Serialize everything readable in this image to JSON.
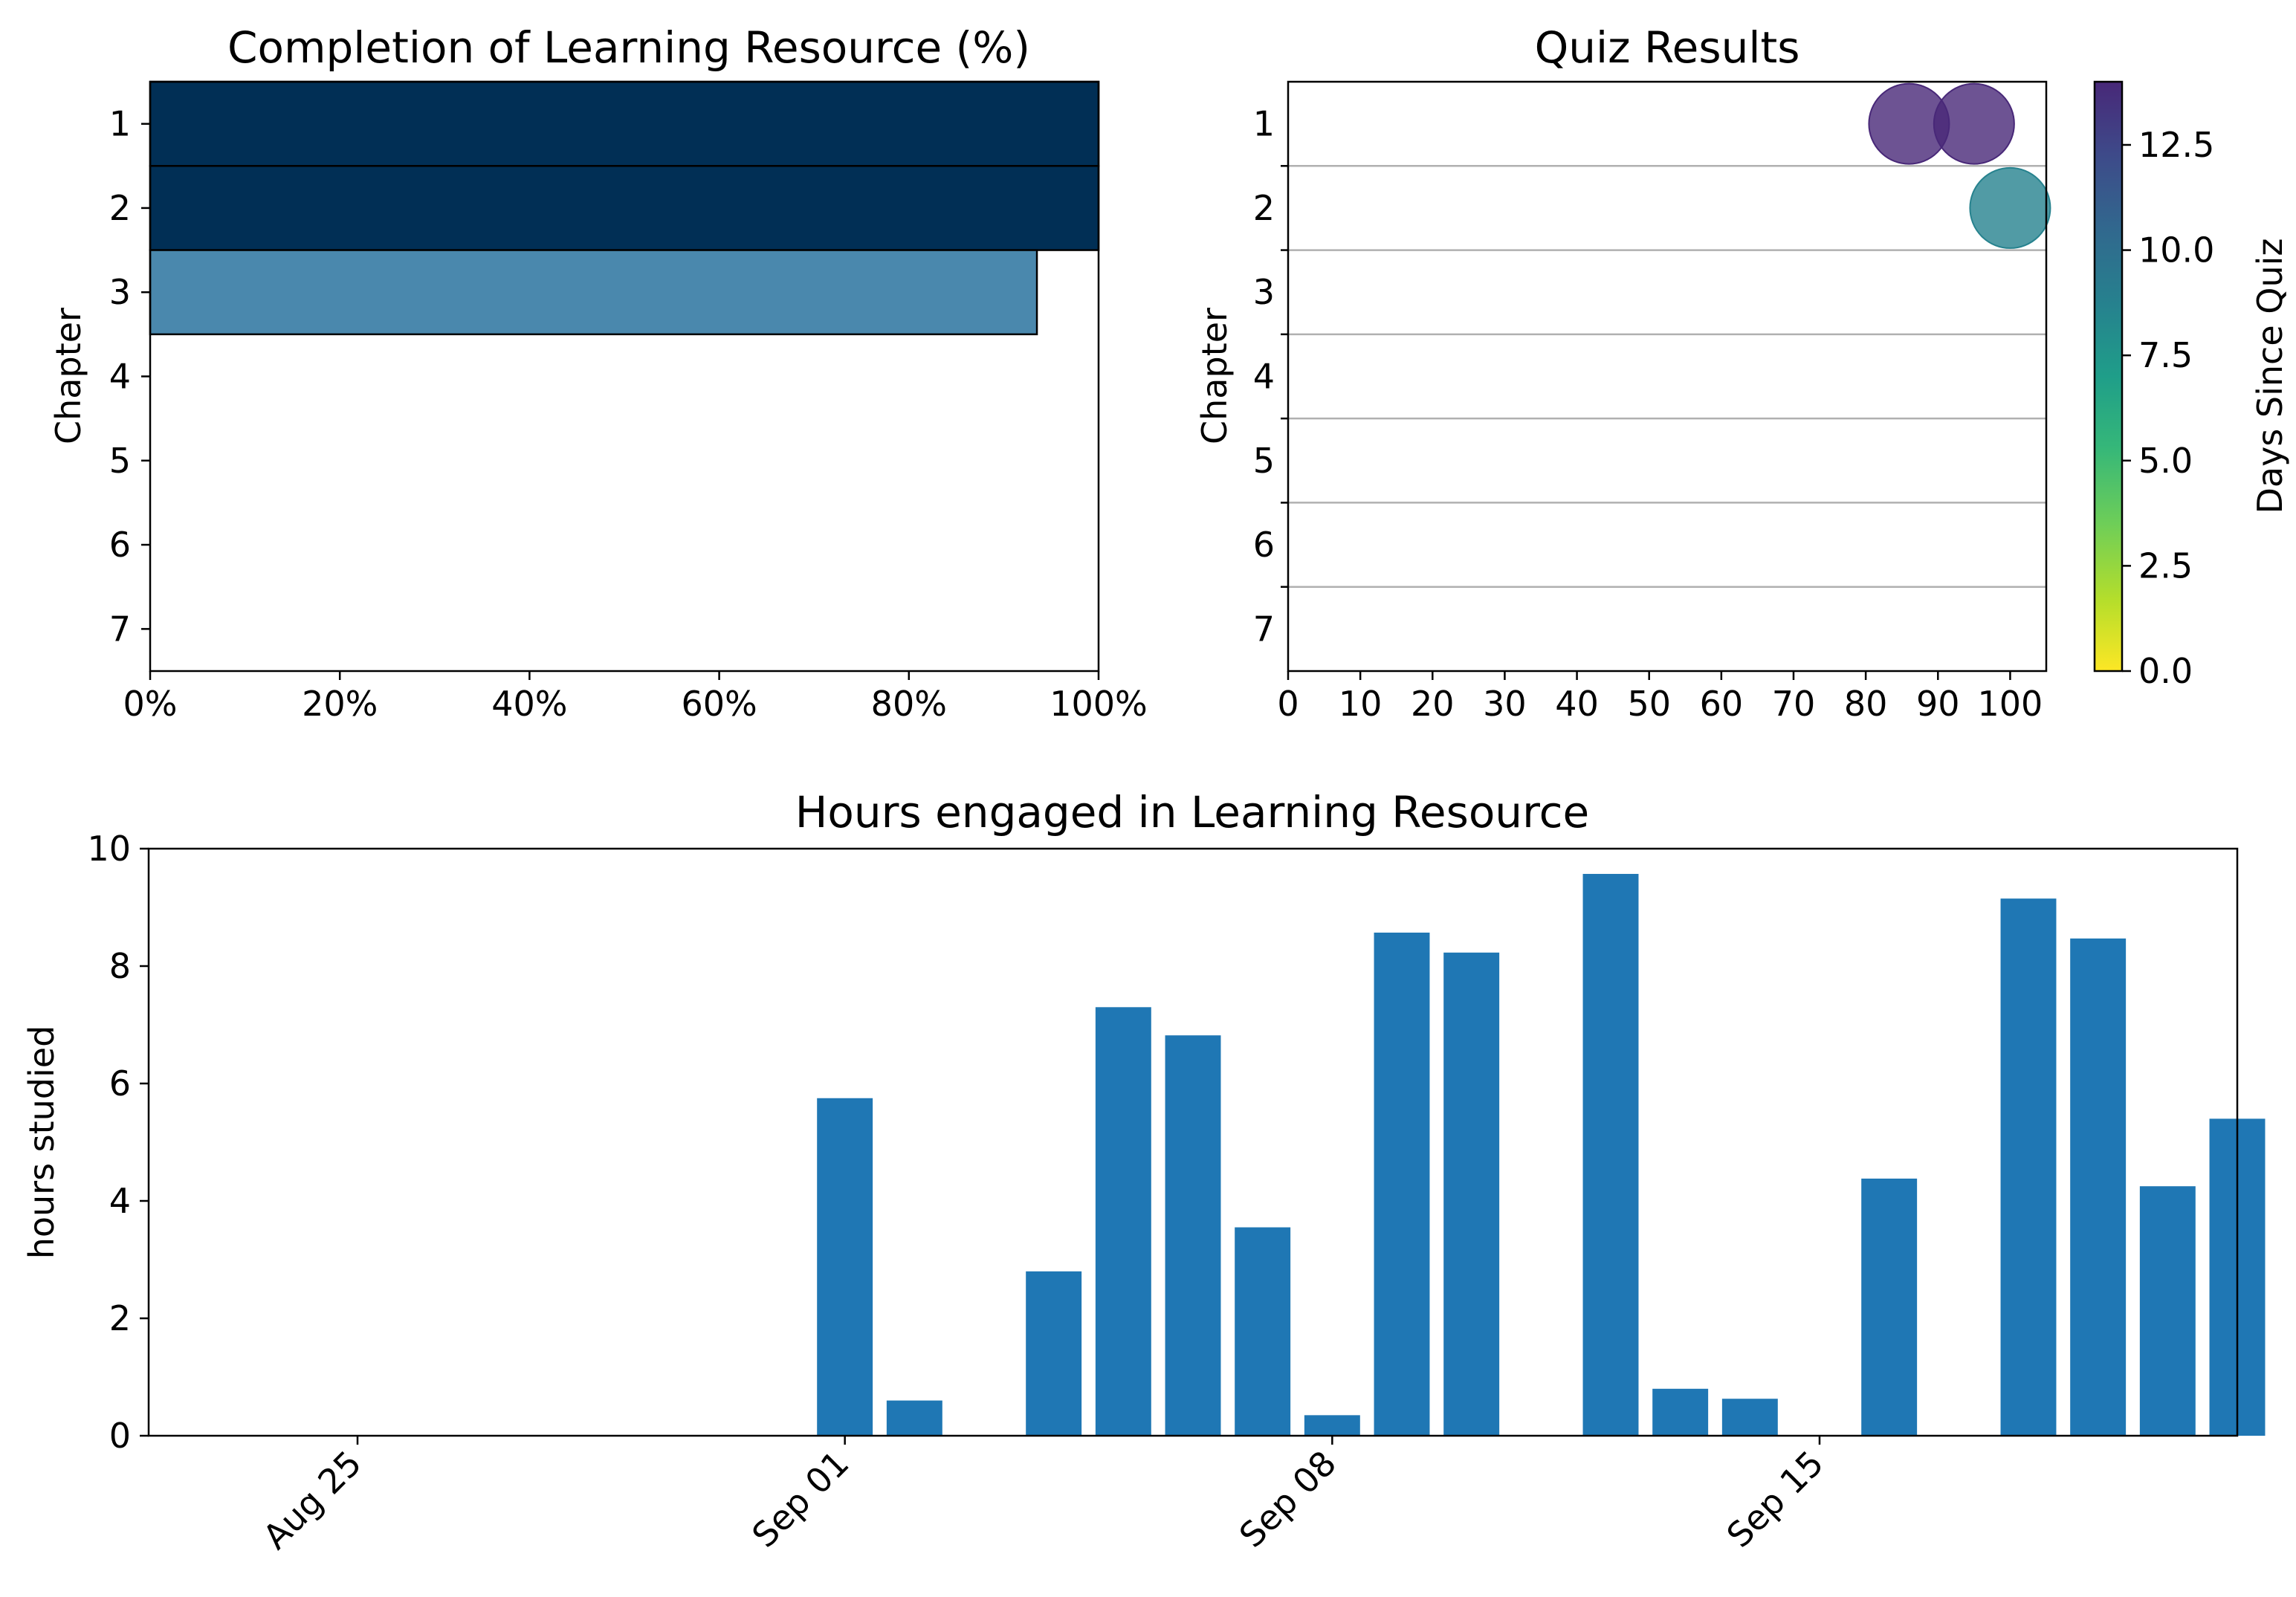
{
  "chart_data": [
    {
      "type": "bar",
      "orientation": "horizontal",
      "title": "Completion of Learning Resource (%)",
      "ylabel": "Chapter",
      "xlabel": "",
      "categories": [
        "1",
        "2",
        "3",
        "4",
        "5",
        "6",
        "7"
      ],
      "values": [
        100,
        100,
        93.5,
        0,
        0,
        0,
        0
      ],
      "bar_colors": [
        "#012f55",
        "#012f55",
        "#4a88ad",
        "#ffffff",
        "#ffffff",
        "#ffffff",
        "#ffffff"
      ],
      "xlim": [
        0,
        100
      ],
      "xticks": [
        "0%",
        "20%",
        "40%",
        "60%",
        "80%",
        "100%"
      ],
      "grid": false
    },
    {
      "type": "scatter",
      "title": "Quiz Results",
      "ylabel": "Chapter",
      "xlabel": "",
      "categories": [
        "1",
        "2",
        "3",
        "4",
        "5",
        "6",
        "7"
      ],
      "points": [
        {
          "chapter": "1",
          "score": 86,
          "days_since_quiz": 14
        },
        {
          "chapter": "1",
          "score": 95,
          "days_since_quiz": 14
        },
        {
          "chapter": "2",
          "score": 100,
          "days_since_quiz": 8.5
        }
      ],
      "xlim": [
        0,
        105
      ],
      "xticks": [
        "0",
        "10",
        "20",
        "30",
        "40",
        "50",
        "60",
        "70",
        "80",
        "90",
        "100"
      ],
      "grid": "horizontal lines between chapters",
      "colorbar": {
        "label": "Days Since Quiz",
        "colormap": "viridis reversed",
        "range": [
          0,
          14
        ],
        "ticks": [
          "0.0",
          "2.5",
          "5.0",
          "7.5",
          "10.0",
          "12.5"
        ]
      }
    },
    {
      "type": "bar",
      "title": "Hours engaged in Learning Resource",
      "ylabel": "hours studied",
      "xlabel": "",
      "color": "#1f77b4",
      "x": [
        "2024-09-01",
        "2024-09-02",
        "2024-09-04",
        "2024-09-05",
        "2024-09-06",
        "2024-09-07",
        "2024-09-08",
        "2024-09-09",
        "2024-09-10",
        "2024-09-12",
        "2024-09-13",
        "2024-09-14",
        "2024-09-16",
        "2024-09-18",
        "2024-09-19",
        "2024-09-20",
        "2024-09-21"
      ],
      "values": [
        5.75,
        0.6,
        2.8,
        7.3,
        6.82,
        3.55,
        0.35,
        8.57,
        8.23,
        9.57,
        0.8,
        0.63,
        4.38,
        9.15,
        8.47,
        4.25,
        5.4
      ],
      "xlim": [
        "2024-08-22",
        "2024-09-21"
      ],
      "ylim": [
        0,
        10
      ],
      "yticks": [
        "0",
        "2",
        "4",
        "6",
        "8",
        "10"
      ],
      "xticks": [
        {
          "date": "2024-08-25",
          "label": "Aug 25"
        },
        {
          "date": "2024-09-01",
          "label": "Sep 01"
        },
        {
          "date": "2024-09-08",
          "label": "Sep 08"
        },
        {
          "date": "2024-09-15",
          "label": "Sep 15"
        }
      ]
    }
  ]
}
